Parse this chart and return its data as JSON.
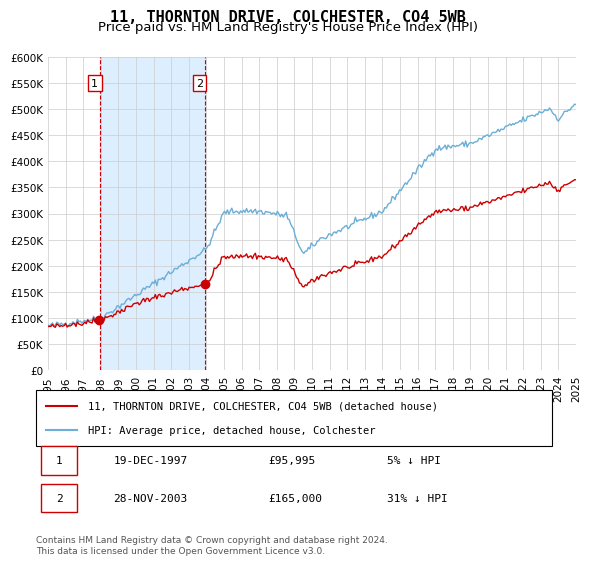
{
  "title": "11, THORNTON DRIVE, COLCHESTER, CO4 5WB",
  "subtitle": "Price paid vs. HM Land Registry's House Price Index (HPI)",
  "xlabel": "",
  "ylabel": "",
  "ylim": [
    0,
    600000
  ],
  "yticks": [
    0,
    50000,
    100000,
    150000,
    200000,
    250000,
    300000,
    350000,
    400000,
    450000,
    500000,
    550000,
    600000
  ],
  "sale1_date": 1997.96,
  "sale1_price": 95995,
  "sale2_date": 2003.91,
  "sale2_price": 165000,
  "hpi_color": "#6baed6",
  "price_color": "#cc0000",
  "shade_color": "#ddeeff",
  "grid_color": "#cccccc",
  "legend_label1": "11, THORNTON DRIVE, COLCHESTER, CO4 5WB (detached house)",
  "legend_label2": "HPI: Average price, detached house, Colchester",
  "annotation1_label": "1",
  "annotation2_label": "2",
  "table_row1": [
    "1",
    "19-DEC-1997",
    "£95,995",
    "5% ↓ HPI"
  ],
  "table_row2": [
    "2",
    "28-NOV-2003",
    "£165,000",
    "31% ↓ HPI"
  ],
  "footer": "Contains HM Land Registry data © Crown copyright and database right 2024.\nThis data is licensed under the Open Government Licence v3.0.",
  "title_fontsize": 11,
  "subtitle_fontsize": 9.5,
  "tick_fontsize": 7.5
}
